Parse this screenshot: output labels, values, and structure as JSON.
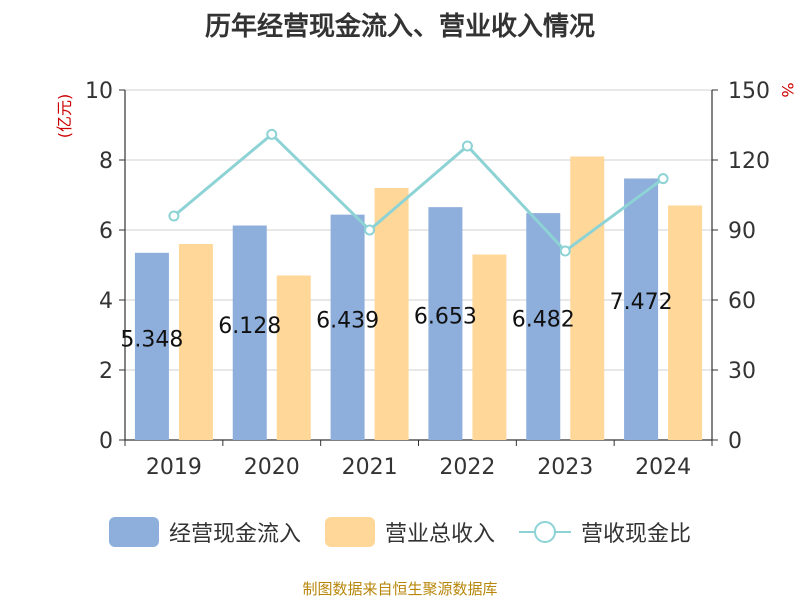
{
  "chart_data": {
    "type": "bar",
    "title": "历年经营现金流入、营业收入情况",
    "categories": [
      "2019",
      "2020",
      "2021",
      "2022",
      "2023",
      "2024"
    ],
    "series": [
      {
        "name": "经营现金流入",
        "type": "bar",
        "axis": "left",
        "color": "#8eaedb",
        "values": [
          5.348,
          6.128,
          6.439,
          6.653,
          6.482,
          7.472
        ],
        "data_labels": [
          "5.348",
          "6.128",
          "6.439",
          "6.653",
          "6.482",
          "7.472"
        ]
      },
      {
        "name": "营业总收入",
        "type": "bar",
        "axis": "left",
        "color": "#ffd799",
        "values": [
          5.6,
          4.7,
          7.2,
          5.3,
          8.1,
          6.7
        ]
      },
      {
        "name": "营收现金比",
        "type": "line",
        "axis": "right",
        "color": "#8dd3d5",
        "values": [
          96,
          131,
          90,
          126,
          81,
          112
        ]
      }
    ],
    "y_left": {
      "label": "(亿元)",
      "ylim": [
        0,
        10
      ],
      "ticks": [
        "0",
        "2",
        "4",
        "6",
        "8",
        "10"
      ]
    },
    "y_right": {
      "label": "%",
      "ylim": [
        0,
        150
      ],
      "ticks": [
        "0",
        "30",
        "60",
        "90",
        "120",
        "150"
      ]
    },
    "grid": true,
    "legend_position": "bottom"
  },
  "source_text": "制图数据来自恒生聚源数据库"
}
